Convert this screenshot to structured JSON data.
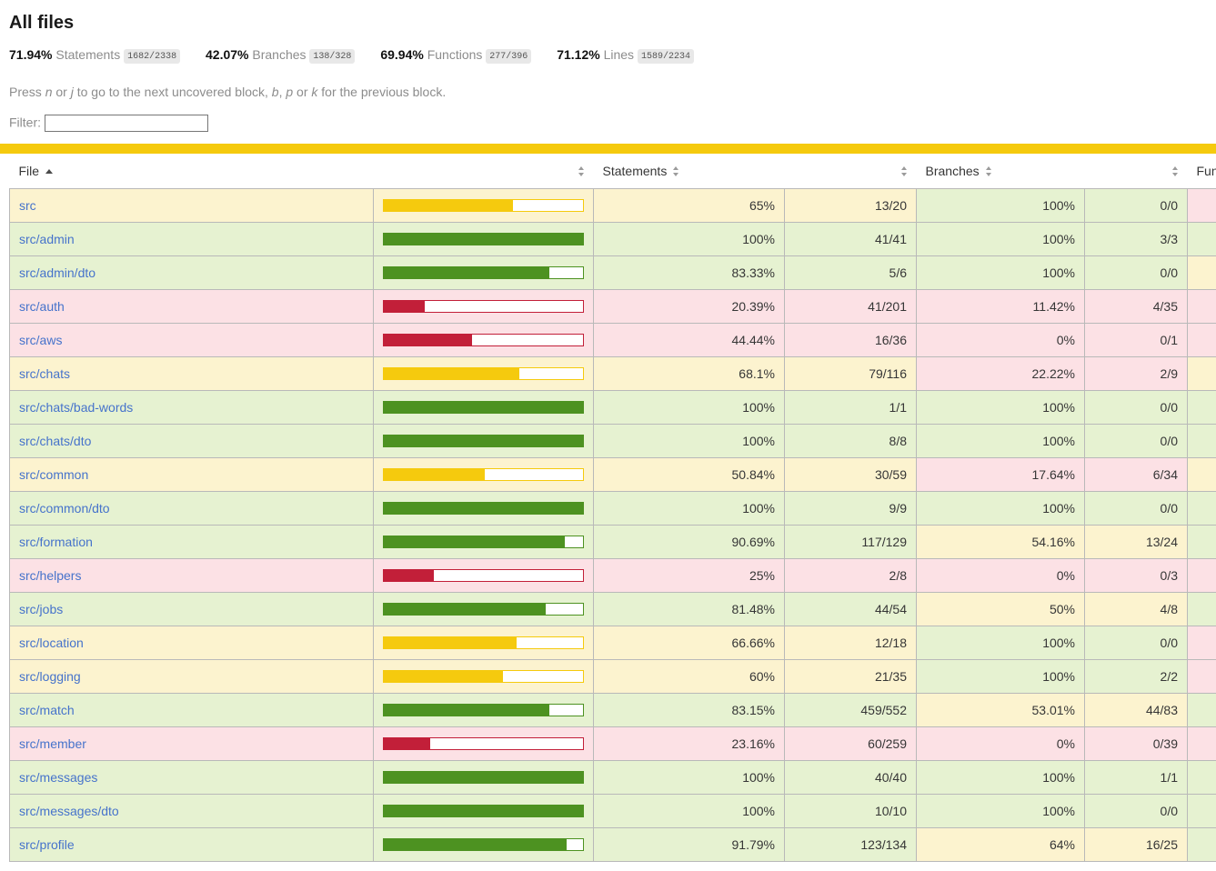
{
  "page": {
    "title": "All files"
  },
  "summary": {
    "metrics": [
      {
        "pct": "71.94%",
        "label": "Statements",
        "fraction": "1682/2338"
      },
      {
        "pct": "42.07%",
        "label": "Branches",
        "fraction": "138/328"
      },
      {
        "pct": "69.94%",
        "label": "Functions",
        "fraction": "277/396"
      },
      {
        "pct": "71.12%",
        "label": "Lines",
        "fraction": "1589/2234"
      }
    ]
  },
  "hint": {
    "p1": "Press ",
    "k1": "n",
    "p2": " or ",
    "k2": "j",
    "p3": " to go to the next uncovered block, ",
    "k3": "b",
    "p4": ", ",
    "k4": "p",
    "p5": " or ",
    "k5": "k",
    "p6": " for the previous block."
  },
  "filter": {
    "label": "Filter:",
    "value": "",
    "placeholder": ""
  },
  "table": {
    "headers": {
      "file": "File",
      "statements": "Statements",
      "branches": "Branches",
      "functions": "Functions"
    },
    "rows": [
      {
        "name": "src",
        "bar_fill": 65,
        "statements_pct": "65%",
        "statements_frac": "13/20",
        "statements_level": "medium",
        "branches_pct": "100%",
        "branches_frac": "0/0",
        "branches_level": "high",
        "functions_level": "low"
      },
      {
        "name": "src/admin",
        "bar_fill": 100,
        "statements_pct": "100%",
        "statements_frac": "41/41",
        "statements_level": "high",
        "branches_pct": "100%",
        "branches_frac": "3/3",
        "branches_level": "high",
        "functions_level": "high"
      },
      {
        "name": "src/admin/dto",
        "bar_fill": 83.33,
        "statements_pct": "83.33%",
        "statements_frac": "5/6",
        "statements_level": "high",
        "branches_pct": "100%",
        "branches_frac": "0/0",
        "branches_level": "high",
        "functions_level": "medium"
      },
      {
        "name": "src/auth",
        "bar_fill": 20.39,
        "statements_pct": "20.39%",
        "statements_frac": "41/201",
        "statements_level": "low",
        "branches_pct": "11.42%",
        "branches_frac": "4/35",
        "branches_level": "low",
        "functions_level": "low"
      },
      {
        "name": "src/aws",
        "bar_fill": 44.44,
        "statements_pct": "44.44%",
        "statements_frac": "16/36",
        "statements_level": "low",
        "branches_pct": "0%",
        "branches_frac": "0/1",
        "branches_level": "low",
        "functions_level": "low"
      },
      {
        "name": "src/chats",
        "bar_fill": 68.1,
        "statements_pct": "68.1%",
        "statements_frac": "79/116",
        "statements_level": "medium",
        "branches_pct": "22.22%",
        "branches_frac": "2/9",
        "branches_level": "low",
        "functions_level": "medium"
      },
      {
        "name": "src/chats/bad-words",
        "bar_fill": 100,
        "statements_pct": "100%",
        "statements_frac": "1/1",
        "statements_level": "high",
        "branches_pct": "100%",
        "branches_frac": "0/0",
        "branches_level": "high",
        "functions_level": "high"
      },
      {
        "name": "src/chats/dto",
        "bar_fill": 100,
        "statements_pct": "100%",
        "statements_frac": "8/8",
        "statements_level": "high",
        "branches_pct": "100%",
        "branches_frac": "0/0",
        "branches_level": "high",
        "functions_level": "high"
      },
      {
        "name": "src/common",
        "bar_fill": 50.84,
        "statements_pct": "50.84%",
        "statements_frac": "30/59",
        "statements_level": "medium",
        "branches_pct": "17.64%",
        "branches_frac": "6/34",
        "branches_level": "low",
        "functions_level": "medium"
      },
      {
        "name": "src/common/dto",
        "bar_fill": 100,
        "statements_pct": "100%",
        "statements_frac": "9/9",
        "statements_level": "high",
        "branches_pct": "100%",
        "branches_frac": "0/0",
        "branches_level": "high",
        "functions_level": "high"
      },
      {
        "name": "src/formation",
        "bar_fill": 90.69,
        "statements_pct": "90.69%",
        "statements_frac": "117/129",
        "statements_level": "high",
        "branches_pct": "54.16%",
        "branches_frac": "13/24",
        "branches_level": "medium",
        "functions_level": "high"
      },
      {
        "name": "src/helpers",
        "bar_fill": 25,
        "statements_pct": "25%",
        "statements_frac": "2/8",
        "statements_level": "low",
        "branches_pct": "0%",
        "branches_frac": "0/3",
        "branches_level": "low",
        "functions_level": "low"
      },
      {
        "name": "src/jobs",
        "bar_fill": 81.48,
        "statements_pct": "81.48%",
        "statements_frac": "44/54",
        "statements_level": "high",
        "branches_pct": "50%",
        "branches_frac": "4/8",
        "branches_level": "medium",
        "functions_level": "high"
      },
      {
        "name": "src/location",
        "bar_fill": 66.66,
        "statements_pct": "66.66%",
        "statements_frac": "12/18",
        "statements_level": "medium",
        "branches_pct": "100%",
        "branches_frac": "0/0",
        "branches_level": "high",
        "functions_level": "low"
      },
      {
        "name": "src/logging",
        "bar_fill": 60,
        "statements_pct": "60%",
        "statements_frac": "21/35",
        "statements_level": "medium",
        "branches_pct": "100%",
        "branches_frac": "2/2",
        "branches_level": "high",
        "functions_level": "low"
      },
      {
        "name": "src/match",
        "bar_fill": 83.15,
        "statements_pct": "83.15%",
        "statements_frac": "459/552",
        "statements_level": "high",
        "branches_pct": "53.01%",
        "branches_frac": "44/83",
        "branches_level": "medium",
        "functions_level": "high"
      },
      {
        "name": "src/member",
        "bar_fill": 23.16,
        "statements_pct": "23.16%",
        "statements_frac": "60/259",
        "statements_level": "low",
        "branches_pct": "0%",
        "branches_frac": "0/39",
        "branches_level": "low",
        "functions_level": "low"
      },
      {
        "name": "src/messages",
        "bar_fill": 100,
        "statements_pct": "100%",
        "statements_frac": "40/40",
        "statements_level": "high",
        "branches_pct": "100%",
        "branches_frac": "1/1",
        "branches_level": "high",
        "functions_level": "high"
      },
      {
        "name": "src/messages/dto",
        "bar_fill": 100,
        "statements_pct": "100%",
        "statements_frac": "10/10",
        "statements_level": "high",
        "branches_pct": "100%",
        "branches_frac": "0/0",
        "branches_level": "high",
        "functions_level": "high"
      },
      {
        "name": "src/profile",
        "bar_fill": 91.79,
        "statements_pct": "91.79%",
        "statements_frac": "123/134",
        "statements_level": "high",
        "branches_pct": "64%",
        "branches_frac": "16/25",
        "branches_level": "medium",
        "functions_level": "high"
      }
    ]
  },
  "colors": {
    "low_bg": "#fce1e5",
    "medium_bg": "#fcf3cf",
    "high_bg": "#e6f2d1",
    "low": "#c21f39",
    "medium": "#f5ca0e",
    "high": "#4d9221",
    "banner": "#f5ca0e",
    "link": "#4673cb"
  }
}
